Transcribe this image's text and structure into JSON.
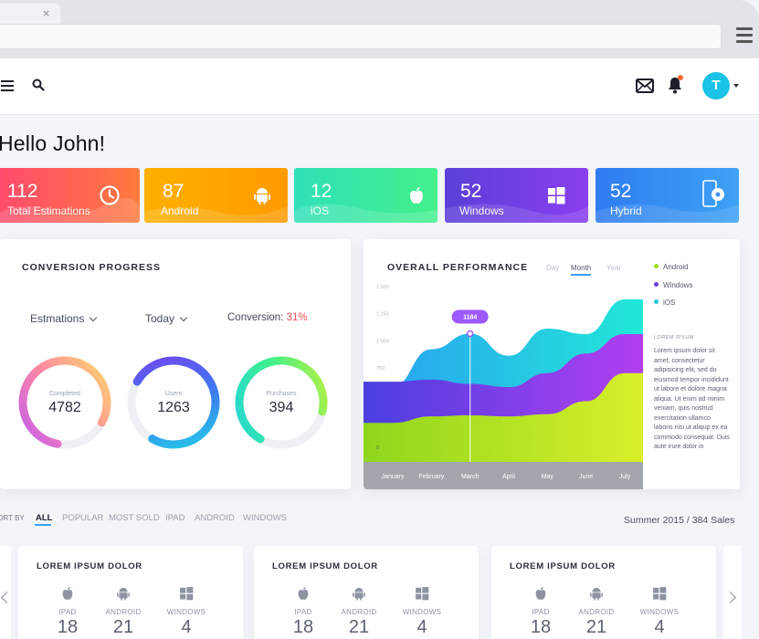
{
  "browser": {
    "tab_close": "×"
  },
  "header": {
    "avatar_initial": "T"
  },
  "greeting": "Hello John!",
  "stats": [
    {
      "value": "112",
      "label": "Total Estimations",
      "icon": "clock-icon"
    },
    {
      "value": "87",
      "label": "Android",
      "icon": "android-icon"
    },
    {
      "value": "12",
      "label": "iOS",
      "icon": "apple-icon"
    },
    {
      "value": "52",
      "label": "Windows",
      "icon": "windows-icon"
    },
    {
      "value": "52",
      "label": "Hybrid",
      "icon": "hybrid-device-icon"
    }
  ],
  "conversion": {
    "title": "CONVERSION PROGRESS",
    "dropdown_estimations": "Estmations",
    "dropdown_today": "Today",
    "conversion_label": "Conversion:",
    "conversion_value": "31%",
    "rings": [
      {
        "caption": "Completed",
        "value": "4782",
        "fraction": 0.8
      },
      {
        "caption": "Users",
        "value": "1263",
        "fraction": 0.75
      },
      {
        "caption": "Purchases",
        "value": "394",
        "fraction": 0.7
      }
    ]
  },
  "performance": {
    "title": "OVERALL PERFORMANCE",
    "periods": [
      "Day",
      "Month",
      "Year"
    ],
    "active_period": "Month",
    "tooltip": "1184",
    "legend": [
      {
        "name": "Android",
        "color": "#a2d921"
      },
      {
        "name": "Windows",
        "color": "#6a3fe0"
      },
      {
        "name": "iOS",
        "color": "#22c8e0"
      }
    ],
    "lorem_title": "LOREM IPSUM",
    "lorem_body": "Lorem ipsum dolor sit amet, consectetur adipisicing elit, sed do eiusmod tempor incididunt ut labore et dolore magna aliqua. Ut enim ad minim veniam, quis nostrud exercitation ullamco laboris nisi ut aliqup ex ea commodo consequat. Duis aute irure dolor in"
  },
  "chart_data": {
    "type": "area",
    "categories": [
      "January",
      "February",
      "March",
      "April",
      "May",
      "June",
      "July"
    ],
    "y_tick_labels": [
      "1 500",
      "1 250",
      "1 000",
      "750",
      "0"
    ],
    "series": [
      {
        "name": "Android",
        "values": [
          360,
          420,
          430,
          420,
          440,
          560,
          820
        ]
      },
      {
        "name": "Windows",
        "values": [
          740,
          760,
          720,
          690,
          820,
          1000,
          1180
        ]
      },
      {
        "name": "iOS",
        "values": [
          700,
          1040,
          1184,
          980,
          1230,
          1180,
          1500
        ]
      }
    ]
  },
  "sort": {
    "label": "SORT BY",
    "items": [
      "ALL",
      "POPULAR",
      "MOST SOLD",
      "IPAD",
      "ANDROID",
      "WINDOWS"
    ],
    "active": "ALL",
    "summary": "Summer 2015 / 384 Sales"
  },
  "products": [
    {
      "title": "LOREM IPSUM DOLOR",
      "stats": [
        {
          "label": "IPAD",
          "value": "18"
        },
        {
          "label": "ANDROID",
          "value": "21"
        },
        {
          "label": "WINDOWS",
          "value": "4"
        }
      ]
    },
    {
      "title": "LOREM IPSUM DOLOR",
      "stats": [
        {
          "label": "IPAD",
          "value": "18"
        },
        {
          "label": "ANDROID",
          "value": "21"
        },
        {
          "label": "WINDOWS",
          "value": "4"
        }
      ]
    },
    {
      "title": "LOREM IPSUM DOLOR",
      "stats": [
        {
          "label": "IPAD",
          "value": "18"
        },
        {
          "label": "ANDROID",
          "value": "21"
        },
        {
          "label": "WINDOWS",
          "value": "4"
        }
      ]
    }
  ]
}
